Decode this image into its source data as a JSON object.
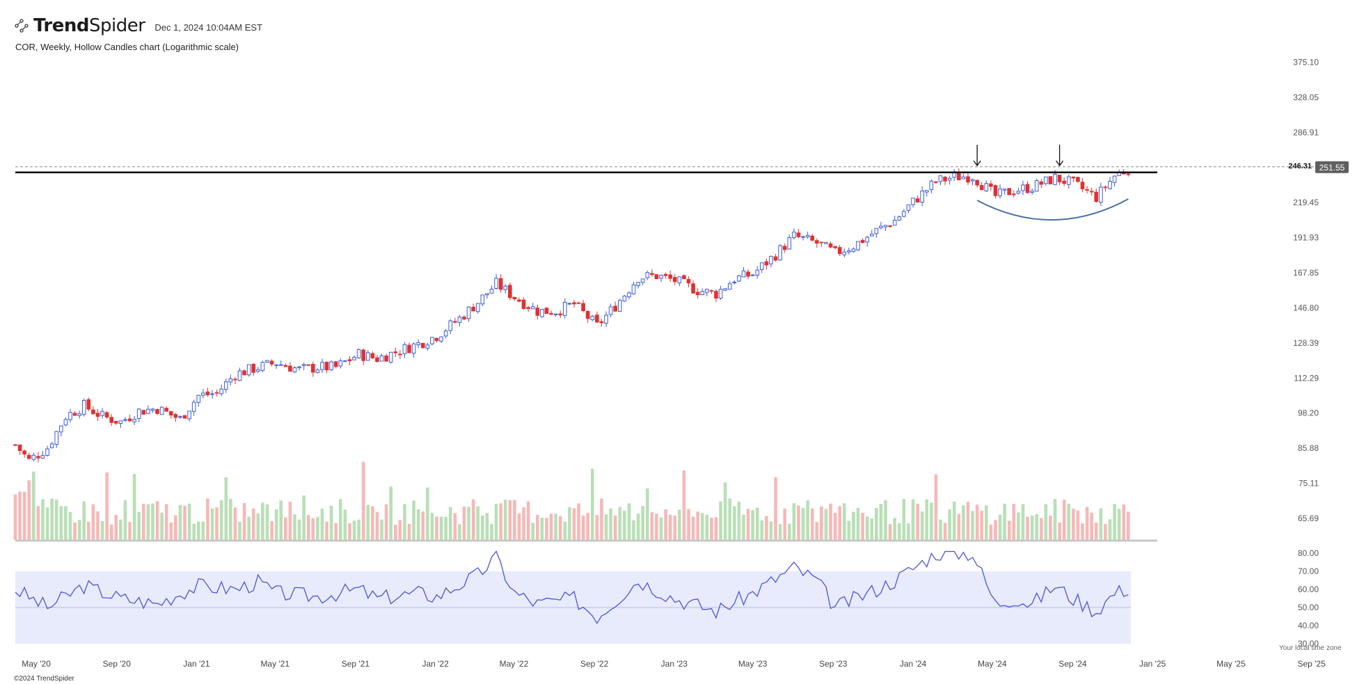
{
  "header": {
    "brand_bold": "Trend",
    "brand_light": "Spider",
    "timestamp": "Dec 1, 2024 10:04AM EST",
    "subtitle": "COR, Weekly, Hollow Candles chart (Logarithmic scale)"
  },
  "footer": {
    "copyright": "©2024 TrendSpider",
    "timezone_note": "Your local time zone"
  },
  "colors": {
    "up": "#3b5bdb",
    "down": "#e03131",
    "vol_up": "#b9dfb6",
    "vol_down": "#f7b8b8",
    "rsi_line": "#4c55d6",
    "rsi_band": "#e8ebfb",
    "resistance": "#000000",
    "arc": "#4a6fa5"
  },
  "chart_data": [
    {
      "type": "candlestick",
      "title": "COR, Weekly, Hollow Candles chart (Logarithmic scale)",
      "scale": "log",
      "x_ticks": [
        "May '20",
        "Sep '20",
        "Jan '21",
        "May '21",
        "Sep '21",
        "Jan '22",
        "May '22",
        "Sep '22",
        "Jan '23",
        "May '23",
        "Sep '23",
        "Jan '24",
        "May '24",
        "Sep '24",
        "Jan '25",
        "May '25",
        "Sep '25"
      ],
      "y_ticks": [
        "375.10",
        "328.05",
        "286.91",
        "251.55",
        "219.45",
        "191.93",
        "167.85",
        "146.80",
        "128.39",
        "112.29",
        "98.20",
        "85.88",
        "75.11",
        "65.69"
      ],
      "ylim": [
        60.5,
        395
      ],
      "last_price": "251.55",
      "resistance_level": "246.31",
      "annotations": [
        "down-arrow at Apr '24 high",
        "down-arrow at Aug '24 high",
        "rounded-bottom arc Apr '24 – Nov '24"
      ],
      "weekly_close_path": [
        [
          "2020-03-30",
          87
        ],
        [
          "2020-04-20",
          82
        ],
        [
          "2020-05-18",
          86
        ],
        [
          "2020-06-15",
          97
        ],
        [
          "2020-07-13",
          101
        ],
        [
          "2020-08-10",
          97
        ],
        [
          "2020-09-07",
          95
        ],
        [
          "2020-10-05",
          99
        ],
        [
          "2020-11-02",
          100
        ],
        [
          "2020-12-07",
          96
        ],
        [
          "2021-01-04",
          105
        ],
        [
          "2021-02-01",
          106
        ],
        [
          "2021-03-01",
          114
        ],
        [
          "2021-04-05",
          117
        ],
        [
          "2021-05-03",
          119
        ],
        [
          "2021-06-07",
          116
        ],
        [
          "2021-07-05",
          117
        ],
        [
          "2021-08-02",
          117
        ],
        [
          "2021-09-06",
          123
        ],
        [
          "2021-10-04",
          121
        ],
        [
          "2021-11-01",
          124
        ],
        [
          "2021-12-06",
          128
        ],
        [
          "2022-01-03",
          132
        ],
        [
          "2022-02-07",
          141
        ],
        [
          "2022-03-07",
          150
        ],
        [
          "2022-04-04",
          161
        ],
        [
          "2022-05-02",
          153
        ],
        [
          "2022-06-06",
          145
        ],
        [
          "2022-07-04",
          145
        ],
        [
          "2022-08-01",
          149
        ],
        [
          "2022-09-05",
          137
        ],
        [
          "2022-10-03",
          148
        ],
        [
          "2022-11-07",
          165
        ],
        [
          "2022-12-05",
          166
        ],
        [
          "2023-01-02",
          163
        ],
        [
          "2023-02-06",
          157
        ],
        [
          "2023-03-06",
          155
        ],
        [
          "2023-04-03",
          164
        ],
        [
          "2023-05-01",
          167
        ],
        [
          "2023-06-05",
          180
        ],
        [
          "2023-07-03",
          193
        ],
        [
          "2023-08-07",
          188
        ],
        [
          "2023-09-04",
          181
        ],
        [
          "2023-10-02",
          186
        ],
        [
          "2023-11-06",
          197
        ],
        [
          "2023-12-04",
          205
        ],
        [
          "2024-01-01",
          220
        ],
        [
          "2024-02-05",
          238
        ],
        [
          "2024-03-04",
          242
        ],
        [
          "2024-04-01",
          243
        ],
        [
          "2024-05-06",
          225
        ],
        [
          "2024-06-03",
          230
        ],
        [
          "2024-07-01",
          233
        ],
        [
          "2024-08-05",
          241
        ],
        [
          "2024-09-02",
          236
        ],
        [
          "2024-10-07",
          224
        ],
        [
          "2024-11-04",
          243
        ],
        [
          "2024-11-29",
          251.55
        ]
      ]
    },
    {
      "type": "line",
      "name": "RSI",
      "y_ticks": [
        "80.00",
        "70.00",
        "60.00",
        "50.00",
        "40.00",
        "30.00"
      ],
      "ylim": [
        30,
        80
      ],
      "band": [
        30,
        70
      ],
      "midline": 50,
      "values_path": [
        [
          "2020-03-30",
          60
        ],
        [
          "2020-05-18",
          50
        ],
        [
          "2020-07-13",
          62
        ],
        [
          "2020-09-07",
          55
        ],
        [
          "2020-11-02",
          52
        ],
        [
          "2020-12-07",
          58
        ],
        [
          "2021-01-04",
          62
        ],
        [
          "2021-03-01",
          60
        ],
        [
          "2021-04-05",
          64
        ],
        [
          "2021-05-03",
          58
        ],
        [
          "2021-07-05",
          56
        ],
        [
          "2021-09-06",
          60
        ],
        [
          "2021-10-04",
          55
        ],
        [
          "2021-12-06",
          58
        ],
        [
          "2022-01-03",
          56
        ],
        [
          "2022-03-07",
          68
        ],
        [
          "2022-04-04",
          78
        ],
        [
          "2022-05-02",
          58
        ],
        [
          "2022-06-06",
          52
        ],
        [
          "2022-08-01",
          55
        ],
        [
          "2022-09-05",
          45
        ],
        [
          "2022-11-07",
          65
        ],
        [
          "2023-01-02",
          55
        ],
        [
          "2023-03-06",
          48
        ],
        [
          "2023-05-01",
          58
        ],
        [
          "2023-07-03",
          72
        ],
        [
          "2023-08-07",
          65
        ],
        [
          "2023-09-04",
          50
        ],
        [
          "2023-11-06",
          60
        ],
        [
          "2023-12-04",
          65
        ],
        [
          "2024-02-05",
          80
        ],
        [
          "2024-04-01",
          80
        ],
        [
          "2024-05-06",
          52
        ],
        [
          "2024-06-03",
          55
        ],
        [
          "2024-07-01",
          52
        ],
        [
          "2024-08-05",
          62
        ],
        [
          "2024-09-02",
          55
        ],
        [
          "2024-10-07",
          48
        ],
        [
          "2024-11-04",
          58
        ],
        [
          "2024-11-29",
          61
        ]
      ]
    }
  ]
}
